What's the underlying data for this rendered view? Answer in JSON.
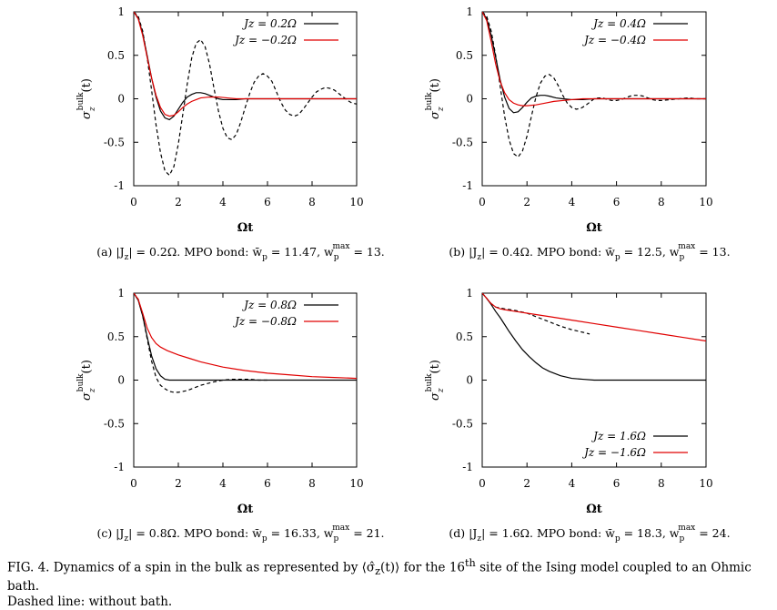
{
  "caption": {
    "prefix": "FIG. 4. Dynamics of a spin in the bulk as represented by ⟨σ̂",
    "sub": "z",
    "middle": "(t)⟩ for the 16",
    "sup": "th",
    "suffix": " site of the Ising model coupled to an Ohmic bath.",
    "line2": "Dashed line: without bath."
  },
  "chart_data": [
    {
      "type": "line",
      "panel": "a",
      "caption_parts": [
        "(a) |J",
        "z",
        "| = 0.2Ω.  MPO bond: w̄",
        "p",
        " = 11.47, w",
        "p",
        "max",
        " = 13."
      ],
      "xlabel": "Ωt",
      "ylabel_main": "σ",
      "ylabel_sub": "z",
      "ylabel_sup": "bulk",
      "ylabel_tail": "(t)",
      "xlim": [
        0,
        10
      ],
      "ylim": [
        -1,
        1
      ],
      "xticks": [
        "0",
        "2",
        "4",
        "6",
        "8",
        "10"
      ],
      "yticks": [
        "-1",
        "-0.5",
        "0",
        "0.5",
        "1"
      ],
      "legend_position": "top-right",
      "series": [
        {
          "name": "Jz = 0.2Ω",
          "color": "#000000",
          "dash": false,
          "x": [
            0,
            0.2,
            0.4,
            0.6,
            0.8,
            1.0,
            1.2,
            1.4,
            1.6,
            1.8,
            2.0,
            2.2,
            2.4,
            2.6,
            2.8,
            3.0,
            3.2,
            3.5,
            3.8,
            4.0,
            4.3,
            4.6,
            5.0,
            6.0,
            7.0,
            8.0,
            9.0,
            10.0
          ],
          "y": [
            1,
            0.93,
            0.75,
            0.5,
            0.24,
            0.02,
            -0.14,
            -0.22,
            -0.24,
            -0.2,
            -0.12,
            -0.04,
            0.02,
            0.05,
            0.07,
            0.07,
            0.06,
            0.03,
            0.0,
            -0.01,
            -0.01,
            -0.01,
            0,
            0,
            0,
            0,
            0,
            0
          ]
        },
        {
          "name": "Jz = −0.2Ω",
          "color": "#e00000",
          "dash": false,
          "x": [
            0,
            0.2,
            0.4,
            0.6,
            0.8,
            1.0,
            1.2,
            1.4,
            1.6,
            1.8,
            2.0,
            2.2,
            2.4,
            2.6,
            2.8,
            3.0,
            3.4,
            3.8,
            4.2,
            4.6,
            5.0,
            6.0,
            7.0,
            8.0,
            9.0,
            10.0
          ],
          "y": [
            1,
            0.92,
            0.73,
            0.48,
            0.24,
            0.04,
            -0.1,
            -0.18,
            -0.2,
            -0.19,
            -0.15,
            -0.1,
            -0.06,
            -0.03,
            -0.01,
            0.01,
            0.02,
            0.02,
            0.01,
            0.0,
            0,
            0,
            0,
            0,
            0,
            0
          ]
        },
        {
          "name": "",
          "color": "#000000",
          "dash": true,
          "x": [
            0,
            0.2,
            0.4,
            0.6,
            0.8,
            1.0,
            1.2,
            1.4,
            1.6,
            1.8,
            2.0,
            2.2,
            2.4,
            2.6,
            2.8,
            3.0,
            3.2,
            3.4,
            3.6,
            3.8,
            4.0,
            4.2,
            4.4,
            4.6,
            4.8,
            5.0,
            5.2,
            5.4,
            5.6,
            5.8,
            6.0,
            6.2,
            6.4,
            6.6,
            6.8,
            7.0,
            7.2,
            7.4,
            7.6,
            7.8,
            8.0,
            8.2,
            8.4,
            8.6,
            8.8,
            9.0,
            9.2,
            9.4,
            9.6,
            9.8,
            10.0
          ],
          "y": [
            1,
            0.95,
            0.78,
            0.48,
            0.1,
            -0.3,
            -0.62,
            -0.83,
            -0.88,
            -0.78,
            -0.52,
            -0.18,
            0.17,
            0.47,
            0.64,
            0.68,
            0.6,
            0.4,
            0.12,
            -0.14,
            -0.34,
            -0.45,
            -0.47,
            -0.41,
            -0.27,
            -0.1,
            0.06,
            0.19,
            0.26,
            0.29,
            0.26,
            0.2,
            0.08,
            -0.04,
            -0.13,
            -0.18,
            -0.2,
            -0.18,
            -0.12,
            -0.05,
            0.02,
            0.08,
            0.11,
            0.13,
            0.12,
            0.1,
            0.06,
            0.02,
            -0.02,
            -0.05,
            -0.06
          ]
        }
      ]
    },
    {
      "type": "line",
      "panel": "b",
      "caption_parts": [
        "(b) |J",
        "z",
        "| = 0.4Ω.  MPO bond: w̄",
        "p",
        " = 12.5, w",
        "p",
        "max",
        " = 13."
      ],
      "xlabel": "Ωt",
      "ylabel_main": "σ",
      "ylabel_sub": "z",
      "ylabel_sup": "bulk",
      "ylabel_tail": "(t)",
      "xlim": [
        0,
        10
      ],
      "ylim": [
        -1,
        1
      ],
      "xticks": [
        "0",
        "2",
        "4",
        "6",
        "8",
        "10"
      ],
      "yticks": [
        "-1",
        "-0.5",
        "0",
        "0.5",
        "1"
      ],
      "legend_position": "top-right",
      "series": [
        {
          "name": "Jz = 0.4Ω",
          "color": "#000000",
          "dash": false,
          "x": [
            0,
            0.2,
            0.4,
            0.6,
            0.8,
            1.0,
            1.2,
            1.4,
            1.6,
            1.8,
            2.0,
            2.2,
            2.4,
            2.6,
            2.8,
            3.0,
            3.3,
            3.6,
            4.0,
            4.5,
            5.0,
            6.0,
            7.0,
            8.0,
            9.0,
            10.0
          ],
          "y": [
            1,
            0.92,
            0.73,
            0.48,
            0.22,
            0.02,
            -0.11,
            -0.16,
            -0.15,
            -0.1,
            -0.04,
            0.01,
            0.03,
            0.04,
            0.04,
            0.03,
            0.01,
            0.0,
            -0.01,
            -0.01,
            0,
            0,
            0,
            0,
            0,
            0
          ]
        },
        {
          "name": "Jz = −0.4Ω",
          "color": "#e00000",
          "dash": false,
          "x": [
            0,
            0.2,
            0.4,
            0.6,
            0.8,
            1.0,
            1.2,
            1.4,
            1.6,
            1.8,
            2.0,
            2.4,
            2.8,
            3.2,
            3.6,
            4.0,
            4.5,
            5.0,
            6.0,
            7.0,
            8.0,
            9.0,
            10.0
          ],
          "y": [
            1,
            0.9,
            0.66,
            0.4,
            0.2,
            0.07,
            -0.01,
            -0.05,
            -0.07,
            -0.08,
            -0.08,
            -0.07,
            -0.05,
            -0.03,
            -0.02,
            -0.01,
            0,
            0,
            0,
            0,
            0,
            0,
            0
          ]
        },
        {
          "name": "",
          "color": "#000000",
          "dash": true,
          "x": [
            0,
            0.2,
            0.4,
            0.6,
            0.8,
            1.0,
            1.2,
            1.4,
            1.6,
            1.8,
            2.0,
            2.2,
            2.4,
            2.6,
            2.8,
            3.0,
            3.2,
            3.4,
            3.6,
            3.8,
            4.0,
            4.2,
            4.4,
            4.6,
            4.8,
            5.0,
            5.2,
            5.4,
            5.6,
            5.8,
            6.0,
            6.2,
            6.4,
            6.6,
            6.8,
            7.0,
            7.2,
            7.4,
            7.6,
            7.8,
            8.0,
            8.4,
            8.8,
            9.2,
            9.6,
            10.0
          ],
          "y": [
            1,
            0.95,
            0.78,
            0.5,
            0.15,
            -0.2,
            -0.47,
            -0.63,
            -0.67,
            -0.6,
            -0.43,
            -0.2,
            0.02,
            0.18,
            0.26,
            0.28,
            0.24,
            0.15,
            0.04,
            -0.05,
            -0.1,
            -0.12,
            -0.11,
            -0.08,
            -0.04,
            0.0,
            0.01,
            0.01,
            -0.01,
            -0.02,
            -0.02,
            -0.01,
            0.01,
            0.03,
            0.04,
            0.04,
            0.03,
            0.01,
            -0.01,
            -0.02,
            -0.02,
            -0.01,
            0.0,
            0.01,
            0.0,
            0.0
          ]
        }
      ]
    },
    {
      "type": "line",
      "panel": "c",
      "caption_parts": [
        "(c) |J",
        "z",
        "| = 0.8Ω.  MPO bond: w̄",
        "p",
        " = 16.33, w",
        "p",
        "max",
        " = 21."
      ],
      "xlabel": "Ωt",
      "ylabel_main": "σ",
      "ylabel_sub": "z",
      "ylabel_sup": "bulk",
      "ylabel_tail": "(t)",
      "xlim": [
        0,
        10
      ],
      "ylim": [
        -1,
        1
      ],
      "xticks": [
        "0",
        "2",
        "4",
        "6",
        "8",
        "10"
      ],
      "yticks": [
        "-1",
        "-0.5",
        "0",
        "0.5",
        "1"
      ],
      "legend_position": "top-right",
      "series": [
        {
          "name": "Jz = 0.8Ω",
          "color": "#000000",
          "dash": false,
          "x": [
            0,
            0.2,
            0.4,
            0.6,
            0.8,
            1.0,
            1.2,
            1.4,
            1.6,
            1.8,
            2.0,
            2.3,
            2.6,
            3.0,
            4.0,
            5.0,
            6.0,
            7.0,
            8.0,
            9.0,
            10.0
          ],
          "y": [
            1,
            0.92,
            0.74,
            0.5,
            0.28,
            0.13,
            0.05,
            0.01,
            0.0,
            0.0,
            0.0,
            0.0,
            0.0,
            0,
            0,
            0,
            0,
            0,
            0,
            0,
            0
          ]
        },
        {
          "name": "Jz = −0.8Ω",
          "color": "#e00000",
          "dash": false,
          "x": [
            0,
            0.2,
            0.4,
            0.6,
            0.8,
            1.0,
            1.2,
            1.5,
            2.0,
            2.5,
            3.0,
            3.5,
            4.0,
            5.0,
            6.0,
            7.0,
            8.0,
            9.0,
            10.0
          ],
          "y": [
            1,
            0.93,
            0.77,
            0.6,
            0.49,
            0.42,
            0.38,
            0.34,
            0.29,
            0.25,
            0.21,
            0.18,
            0.15,
            0.11,
            0.08,
            0.06,
            0.04,
            0.03,
            0.02
          ]
        },
        {
          "name": "",
          "color": "#000000",
          "dash": true,
          "x": [
            0,
            0.2,
            0.4,
            0.6,
            0.8,
            1.0,
            1.2,
            1.4,
            1.6,
            1.8,
            2.0,
            2.2,
            2.4,
            2.6,
            2.8,
            3.0,
            3.3,
            3.6,
            4.0,
            4.4,
            4.8,
            5.2,
            5.6,
            6.0
          ],
          "y": [
            1,
            0.93,
            0.74,
            0.48,
            0.22,
            0.03,
            -0.06,
            -0.1,
            -0.13,
            -0.14,
            -0.14,
            -0.13,
            -0.12,
            -0.1,
            -0.08,
            -0.06,
            -0.04,
            -0.02,
            0.0,
            0.01,
            0.01,
            0.01,
            0.0,
            0.0
          ]
        }
      ]
    },
    {
      "type": "line",
      "panel": "d",
      "caption_parts": [
        "(d) |J",
        "z",
        "| = 1.6Ω.  MPO bond: w̄",
        "p",
        " = 18.3, w",
        "p",
        "max",
        " = 24."
      ],
      "xlabel": "Ωt",
      "ylabel_main": "σ",
      "ylabel_sub": "z",
      "ylabel_sup": "bulk",
      "ylabel_tail": "(t)",
      "xlim": [
        0,
        10
      ],
      "ylim": [
        -1,
        1
      ],
      "xticks": [
        "0",
        "2",
        "4",
        "6",
        "8",
        "10"
      ],
      "yticks": [
        "-1",
        "-0.5",
        "0",
        "0.5",
        "1"
      ],
      "legend_position": "bottom-right",
      "series": [
        {
          "name": "Jz = 1.6Ω",
          "color": "#000000",
          "dash": false,
          "x": [
            0,
            0.2,
            0.4,
            0.6,
            0.8,
            1.0,
            1.2,
            1.5,
            1.8,
            2.1,
            2.4,
            2.7,
            3.0,
            3.5,
            4.0,
            4.5,
            5.0,
            6.0,
            7.0,
            8.0,
            9.0,
            10.0
          ],
          "y": [
            1,
            0.94,
            0.87,
            0.79,
            0.72,
            0.64,
            0.56,
            0.45,
            0.35,
            0.27,
            0.2,
            0.14,
            0.1,
            0.05,
            0.02,
            0.01,
            0.0,
            0,
            0,
            0,
            0,
            0
          ]
        },
        {
          "name": "Jz = −1.6Ω",
          "color": "#e00000",
          "dash": false,
          "x": [
            0,
            0.2,
            0.4,
            0.6,
            0.8,
            1.0,
            1.5,
            2.0,
            3.0,
            4.0,
            5.0,
            6.0,
            7.0,
            8.0,
            9.0,
            10.0
          ],
          "y": [
            1,
            0.94,
            0.88,
            0.84,
            0.82,
            0.81,
            0.79,
            0.77,
            0.73,
            0.69,
            0.65,
            0.61,
            0.57,
            0.53,
            0.49,
            0.45
          ]
        },
        {
          "name": "",
          "color": "#000000",
          "dash": true,
          "x": [
            0,
            0.2,
            0.4,
            0.6,
            0.8,
            1.0,
            1.5,
            2.0,
            2.5,
            3.0,
            3.5,
            4.0,
            4.5,
            4.8
          ],
          "y": [
            1,
            0.94,
            0.88,
            0.84,
            0.83,
            0.82,
            0.8,
            0.77,
            0.72,
            0.67,
            0.62,
            0.58,
            0.55,
            0.53
          ]
        }
      ]
    }
  ]
}
